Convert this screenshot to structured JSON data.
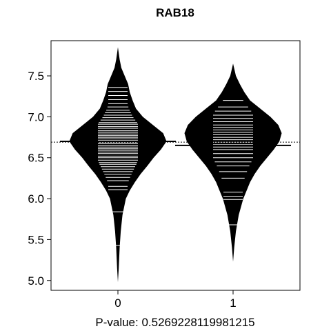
{
  "chart_data": {
    "type": "beanplot",
    "title": "RAB18",
    "xlabel": "P-value: 0.5269228119981215",
    "ylabel": "",
    "categories": [
      "0",
      "1"
    ],
    "yticks": [
      5.0,
      5.5,
      6.0,
      6.5,
      7.0,
      7.5
    ],
    "ylim": [
      4.88,
      7.93
    ],
    "overall_mean": 6.69,
    "groups": [
      {
        "name": "0",
        "mean": 6.7,
        "density": [
          [
            4.98,
            0.0
          ],
          [
            5.15,
            0.015
          ],
          [
            5.4,
            0.03
          ],
          [
            5.6,
            0.05
          ],
          [
            5.8,
            0.08
          ],
          [
            6.0,
            0.14
          ],
          [
            6.1,
            0.21
          ],
          [
            6.2,
            0.3
          ],
          [
            6.3,
            0.4
          ],
          [
            6.4,
            0.52
          ],
          [
            6.5,
            0.63
          ],
          [
            6.6,
            0.76
          ],
          [
            6.7,
            0.86
          ],
          [
            6.8,
            0.8
          ],
          [
            6.9,
            0.62
          ],
          [
            7.0,
            0.44
          ],
          [
            7.1,
            0.32
          ],
          [
            7.2,
            0.26
          ],
          [
            7.3,
            0.21
          ],
          [
            7.4,
            0.18
          ],
          [
            7.5,
            0.12
          ],
          [
            7.6,
            0.06
          ],
          [
            7.7,
            0.03
          ],
          [
            7.85,
            0.0
          ]
        ],
        "observations": [
          5.43,
          5.84,
          6.11,
          6.15,
          6.22,
          6.26,
          6.3,
          6.33,
          6.36,
          6.39,
          6.42,
          6.44,
          6.47,
          6.5,
          6.52,
          6.55,
          6.57,
          6.59,
          6.61,
          6.63,
          6.65,
          6.67,
          6.69,
          6.71,
          6.73,
          6.75,
          6.77,
          6.79,
          6.81,
          6.83,
          6.86,
          6.88,
          6.91,
          6.93,
          6.96,
          6.99,
          7.02,
          7.05,
          7.08,
          7.12,
          7.16,
          7.21,
          7.26,
          7.31,
          7.36
        ]
      },
      {
        "name": "1",
        "mean": 6.65,
        "density": [
          [
            5.23,
            0.0
          ],
          [
            5.4,
            0.02
          ],
          [
            5.6,
            0.05
          ],
          [
            5.8,
            0.1
          ],
          [
            6.0,
            0.18
          ],
          [
            6.1,
            0.24
          ],
          [
            6.2,
            0.3
          ],
          [
            6.3,
            0.38
          ],
          [
            6.4,
            0.48
          ],
          [
            6.5,
            0.6
          ],
          [
            6.6,
            0.72
          ],
          [
            6.7,
            0.82
          ],
          [
            6.8,
            0.86
          ],
          [
            6.9,
            0.8
          ],
          [
            7.0,
            0.66
          ],
          [
            7.1,
            0.48
          ],
          [
            7.2,
            0.3
          ],
          [
            7.3,
            0.2
          ],
          [
            7.4,
            0.12
          ],
          [
            7.5,
            0.05
          ],
          [
            7.65,
            0.0
          ]
        ],
        "observations": [
          5.68,
          5.99,
          6.03,
          6.08,
          6.25,
          6.33,
          6.4,
          6.45,
          6.5,
          6.55,
          6.6,
          6.63,
          6.66,
          6.69,
          6.72,
          6.75,
          6.78,
          6.81,
          6.84,
          6.87,
          6.9,
          6.94,
          6.98,
          7.02,
          7.07,
          7.12,
          7.2
        ]
      }
    ]
  }
}
